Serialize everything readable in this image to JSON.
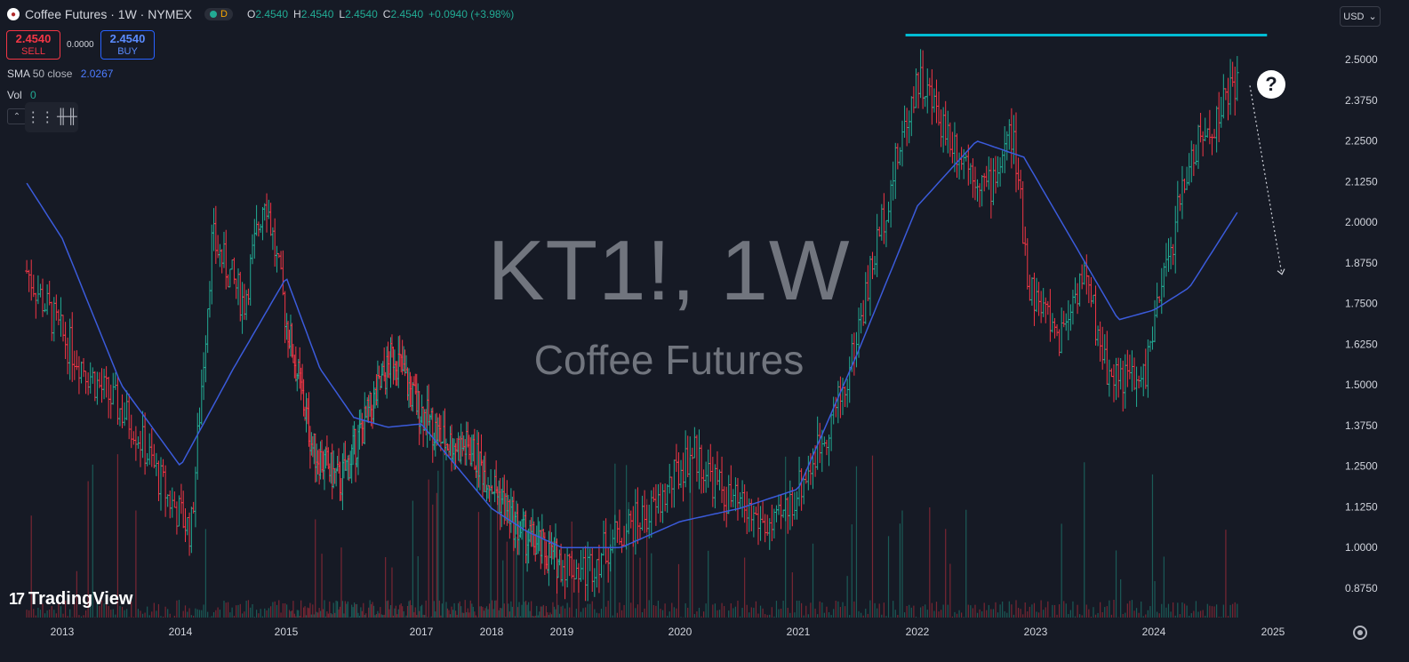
{
  "header": {
    "symbol_icon": "coffee-bean-icon",
    "title": "Coffee Futures · 1W · NYMEX",
    "status_badge": "D",
    "ohlc": {
      "o_label": "O",
      "o_value": "2.4540",
      "h_label": "H",
      "h_value": "2.4540",
      "l_label": "L",
      "l_value": "2.4540",
      "c_label": "C",
      "c_value": "2.4540",
      "change": "+0.0940 (+3.98%)"
    }
  },
  "trade": {
    "sell_price": "2.4540",
    "sell_label": "SELL",
    "spread": "0.0000",
    "buy_price": "2.4540",
    "buy_label": "BUY"
  },
  "indicators": {
    "sma_name": "SMA",
    "sma_params": "50 close",
    "sma_value": "2.0267",
    "vol_name": "Vol",
    "vol_value": "0"
  },
  "currency": "USD",
  "watermark": {
    "symbol": "KT1!, 1W",
    "description": "Coffee Futures"
  },
  "logo_text": "TradingView",
  "colors": {
    "background": "#161a25",
    "up": "#22ab94",
    "down": "#f23645",
    "sma": "#3b5bdb",
    "resistance": "#00bcd4"
  },
  "chart_data": {
    "type": "bar",
    "subtype": "ohlc-weekly",
    "title": "KT1!, 1W",
    "ylabel": "USD",
    "ylim": [
      0.8,
      2.6
    ],
    "y_ticks": [
      "2.5000",
      "2.3750",
      "2.2500",
      "2.1250",
      "2.0000",
      "1.8750",
      "1.7500",
      "1.6250",
      "1.5000",
      "1.3750",
      "1.2500",
      "1.1250",
      "1.0000",
      "0.8750"
    ],
    "x_ticks": [
      "2013",
      "2014",
      "2015",
      "2017",
      "2018",
      "2019",
      "2020",
      "2021",
      "2022",
      "2023",
      "2024",
      "2025"
    ],
    "x_range": [
      2012.7,
      2025.2
    ],
    "series": [
      {
        "name": "price",
        "x": [
          2012.7,
          2013.0,
          2013.3,
          2013.6,
          2013.9,
          2014.1,
          2014.3,
          2014.6,
          2014.8,
          2015.0,
          2015.4,
          2015.8,
          2016.2,
          2016.6,
          2016.9,
          2017.3,
          2017.7,
          2018.0,
          2018.4,
          2018.8,
          2019.2,
          2019.5,
          2019.8,
          2020.1,
          2020.4,
          2020.8,
          2021.1,
          2021.4,
          2021.7,
          2022.0,
          2022.3,
          2022.6,
          2022.8,
          2022.95,
          2023.2,
          2023.4,
          2023.6,
          2023.9,
          2024.1,
          2024.3,
          2024.5,
          2024.7
        ],
        "values": [
          1.85,
          1.65,
          1.5,
          1.38,
          1.15,
          1.05,
          1.95,
          1.75,
          2.1,
          1.7,
          1.3,
          1.2,
          1.4,
          1.6,
          1.45,
          1.33,
          1.3,
          1.2,
          1.05,
          0.98,
          0.93,
          1.05,
          1.12,
          1.3,
          1.15,
          1.05,
          1.25,
          1.5,
          2.0,
          2.45,
          2.25,
          2.1,
          2.28,
          1.8,
          1.65,
          1.85,
          1.55,
          1.5,
          1.85,
          2.2,
          2.3,
          2.454
        ]
      },
      {
        "name": "SMA 50 close",
        "x": [
          2012.7,
          2013.0,
          2013.5,
          2014.0,
          2014.5,
          2015.0,
          2015.5,
          2016.0,
          2016.5,
          2017.0,
          2017.5,
          2018.0,
          2018.5,
          2019.0,
          2019.5,
          2020.0,
          2020.5,
          2021.0,
          2021.5,
          2022.0,
          2022.5,
          2022.9,
          2023.3,
          2023.7,
          2024.0,
          2024.3,
          2024.7
        ],
        "values": [
          2.12,
          1.95,
          1.5,
          1.25,
          1.55,
          1.83,
          1.55,
          1.4,
          1.37,
          1.38,
          1.25,
          1.12,
          1.05,
          1.0,
          1.0,
          1.08,
          1.12,
          1.18,
          1.6,
          2.05,
          2.25,
          2.2,
          1.95,
          1.7,
          1.73,
          1.8,
          2.03
        ]
      }
    ],
    "annotations": {
      "resistance_level": 2.575,
      "projection_arrow": {
        "from": [
          2024.9,
          2.42
        ],
        "to": [
          2025.0,
          1.84
        ]
      }
    },
    "grid": false,
    "legend": "top-left"
  }
}
